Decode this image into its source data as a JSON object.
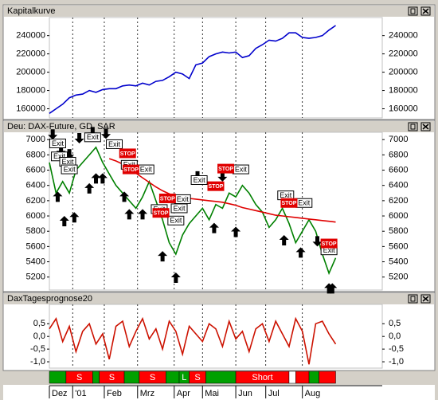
{
  "chart_data": [
    {
      "type": "line",
      "title": "Kapitalkurve",
      "x": [
        0,
        4,
        8,
        12,
        16,
        20,
        24,
        28,
        32,
        36,
        40,
        44,
        48,
        52,
        56,
        60,
        64,
        68,
        72,
        76,
        80,
        84,
        88,
        92,
        96,
        100,
        104,
        108,
        112,
        116,
        120,
        124,
        128,
        132,
        136,
        140,
        144,
        148,
        152,
        156,
        160,
        164,
        168,
        172
      ],
      "series": [
        {
          "color": "#0000cc",
          "values": [
            155000,
            160000,
            165000,
            172000,
            175000,
            176000,
            180000,
            178000,
            181000,
            182000,
            182000,
            185000,
            186000,
            185000,
            188000,
            186000,
            190000,
            191000,
            195000,
            200000,
            198000,
            193000,
            208000,
            210000,
            217000,
            220000,
            222000,
            221000,
            222000,
            216000,
            218000,
            226000,
            230000,
            235000,
            234000,
            237000,
            243000,
            243000,
            238000,
            237000,
            238000,
            240000,
            246000,
            251000
          ]
        }
      ],
      "xlim": [
        0,
        200
      ],
      "ylim": [
        150000,
        258000
      ],
      "yticks": [
        160000,
        180000,
        200000,
        220000,
        240000
      ]
    },
    {
      "type": "line",
      "title": "Deu: DAX-Future, GD, SAR",
      "x": [
        0,
        4,
        8,
        12,
        16,
        20,
        24,
        28,
        32,
        36,
        40,
        44,
        48,
        52,
        56,
        60,
        64,
        68,
        72,
        76,
        80,
        84,
        88,
        92,
        96,
        100,
        104,
        108,
        112,
        116,
        120,
        124,
        128,
        132,
        136,
        140,
        144,
        148,
        152,
        156,
        160,
        164,
        168,
        172
      ],
      "series": [
        {
          "color": "#008000",
          "values": [
            6700,
            6300,
            6450,
            6300,
            6600,
            6700,
            6800,
            6900,
            6700,
            6550,
            6400,
            6300,
            6200,
            6100,
            6250,
            6450,
            6200,
            5950,
            5650,
            5500,
            5750,
            5900,
            6000,
            6100,
            5950,
            6150,
            6100,
            6300,
            6250,
            6400,
            6300,
            6150,
            6050,
            5850,
            5950,
            6100,
            5900,
            5650,
            5800,
            5950,
            5800,
            5500,
            5250,
            5450
          ]
        },
        {
          "color": "#e00000",
          "values": [
            null,
            null,
            null,
            null,
            null,
            null,
            null,
            null,
            null,
            6750,
            6720,
            6680,
            6620,
            6560,
            6500,
            6440,
            6380,
            6330,
            6290,
            6260,
            6240,
            6230,
            6220,
            6210,
            6200,
            6190,
            6180,
            6160,
            6140,
            6110,
            6090,
            6070,
            6050,
            6030,
            6010,
            6000,
            5990,
            5980,
            5970,
            5960,
            5950,
            5940,
            5930,
            5920
          ]
        }
      ],
      "buy_signals": {
        "x": [
          5,
          9,
          15,
          24,
          28,
          32,
          45,
          48,
          56,
          68,
          76,
          99,
          112,
          141,
          151,
          168,
          170
        ],
        "y": [
          6320,
          6000,
          6050,
          6430,
          6560,
          6560,
          6320,
          6090,
          6090,
          5540,
          5260,
          5910,
          5860,
          5750,
          5590,
          5120,
          5120
        ]
      },
      "sell_signals": {
        "x": [
          2,
          7,
          12,
          18,
          26,
          34,
          89,
          104,
          161
        ],
        "y": [
          7000,
          6790,
          6740,
          6950,
          7030,
          7010,
          6450,
          6450,
          5600
        ]
      },
      "annotations": [
        {
          "text": "Exit",
          "x": 5,
          "y": 6950
        },
        {
          "text": "Exit",
          "x": 6,
          "y": 6780
        },
        {
          "text": "Exit",
          "x": 11,
          "y": 6710
        },
        {
          "text": "Exit",
          "x": 12,
          "y": 6610
        },
        {
          "text": "Exit",
          "x": 26,
          "y": 7030
        },
        {
          "text": "Exit",
          "x": 39,
          "y": 6940
        },
        {
          "text": "Exit",
          "x": 48,
          "y": 6670
        },
        {
          "text": "Exit",
          "x": 58,
          "y": 6610
        },
        {
          "text": "Exit",
          "x": 66,
          "y": 6090
        },
        {
          "text": "Exit",
          "x": 76,
          "y": 5940
        },
        {
          "text": "Exit",
          "x": 78,
          "y": 6100
        },
        {
          "text": "Exit",
          "x": 80,
          "y": 6220
        },
        {
          "text": "Exit",
          "x": 90,
          "y": 6470
        },
        {
          "text": "Exit",
          "x": 115,
          "y": 6610
        },
        {
          "text": "Exit",
          "x": 142,
          "y": 6270
        },
        {
          "text": "Exit",
          "x": 153,
          "y": 6170
        },
        {
          "text": "Exit",
          "x": 168,
          "y": 5550
        },
        {
          "text": "STOP",
          "x": 47,
          "y": 6820
        },
        {
          "text": "STOP",
          "x": 49,
          "y": 6610
        },
        {
          "text": "STOP",
          "x": 71,
          "y": 6230
        },
        {
          "text": "STOP",
          "x": 67,
          "y": 6040
        },
        {
          "text": "STOP",
          "x": 100,
          "y": 6390
        },
        {
          "text": "STOP",
          "x": 106,
          "y": 6620
        },
        {
          "text": "STOP",
          "x": 144,
          "y": 6170
        },
        {
          "text": "STOP",
          "x": 168,
          "y": 5640
        }
      ],
      "xlim": [
        0,
        200
      ],
      "ylim": [
        5030,
        7075
      ],
      "yticks": [
        5200,
        5400,
        5600,
        5800,
        6000,
        6200,
        6400,
        6600,
        6800,
        7000
      ]
    },
    {
      "type": "line",
      "title": "DaxTagesprognose20",
      "x": [
        0,
        4,
        8,
        12,
        16,
        20,
        24,
        28,
        32,
        36,
        40,
        44,
        48,
        52,
        56,
        60,
        64,
        68,
        72,
        76,
        80,
        84,
        88,
        92,
        96,
        100,
        104,
        108,
        112,
        116,
        120,
        124,
        128,
        132,
        136,
        140,
        144,
        148,
        152,
        156,
        160,
        164,
        168,
        172
      ],
      "series": [
        {
          "color": "#cc1100",
          "values": [
            0.3,
            0.7,
            -0.2,
            0.4,
            -0.6,
            0.2,
            0.5,
            -0.3,
            0.1,
            -0.9,
            0.4,
            0.6,
            -0.4,
            0.2,
            0.7,
            -0.1,
            0.3,
            -0.5,
            0.6,
            0.2,
            -0.7,
            0.4,
            0.1,
            -0.2,
            0.5,
            0.3,
            -0.4,
            0.6,
            -0.1,
            0.2,
            -0.6,
            0.3,
            0.5,
            -0.2,
            0.6,
            0.1,
            -0.4,
            0.7,
            0.2,
            -1.1,
            0.5,
            0.6,
            0.1,
            -0.3
          ]
        }
      ],
      "xlim": [
        0,
        200
      ],
      "ylim": [
        -1.25,
        1.2
      ],
      "yticks": [
        {
          "value": 0.5,
          "label": "0,5"
        },
        {
          "value": 0,
          "label": "0,0"
        },
        {
          "value": -0.5,
          "label": "-0,5"
        },
        {
          "value": -1,
          "label": "-1,0"
        }
      ],
      "signal_bar": [
        {
          "from": 0,
          "to": 10,
          "color": "#00a000"
        },
        {
          "from": 10,
          "to": 26,
          "color": "#ff0000",
          "label": "S"
        },
        {
          "from": 26,
          "to": 30,
          "color": "#00a000"
        },
        {
          "from": 30,
          "to": 45,
          "color": "#ff0000",
          "label": "S"
        },
        {
          "from": 45,
          "to": 54,
          "color": "#00a000"
        },
        {
          "from": 54,
          "to": 70,
          "color": "#ff0000",
          "label": "S"
        },
        {
          "from": 70,
          "to": 78,
          "color": "#00a000"
        },
        {
          "from": 78,
          "to": 84,
          "color": "#00a000",
          "label": "L"
        },
        {
          "from": 84,
          "to": 94,
          "color": "#ff0000",
          "label": "S"
        },
        {
          "from": 94,
          "to": 112,
          "color": "#00a000"
        },
        {
          "from": 112,
          "to": 144,
          "color": "#ff0000",
          "label": "Short"
        },
        {
          "from": 144,
          "to": 148,
          "color": "#ffffff"
        },
        {
          "from": 148,
          "to": 156,
          "color": "#ff0000"
        },
        {
          "from": 156,
          "to": 162,
          "color": "#00a000"
        },
        {
          "from": 162,
          "to": 172,
          "color": "#ff0000"
        }
      ],
      "xticks": [
        {
          "value": 0,
          "label": "Dez"
        },
        {
          "value": 14,
          "label": "'01"
        },
        {
          "value": 33,
          "label": "Feb"
        },
        {
          "value": 53,
          "label": "Mrz"
        },
        {
          "value": 75,
          "label": "Apr"
        },
        {
          "value": 92,
          "label": "Mai"
        },
        {
          "value": 112,
          "label": "Jun"
        },
        {
          "value": 130,
          "label": "Jul"
        },
        {
          "value": 152,
          "label": "Aug"
        }
      ]
    }
  ]
}
